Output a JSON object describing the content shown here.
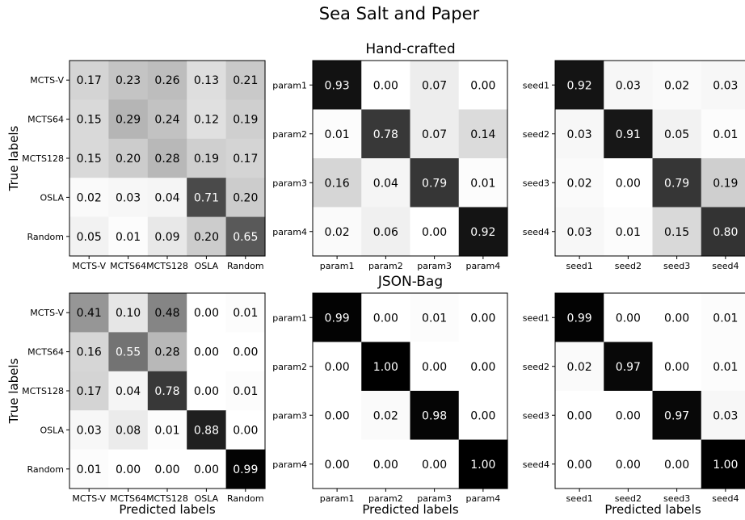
{
  "figure": {
    "title": "Sea Salt and Paper",
    "row_titles": [
      "Hand-crafted",
      "JSON-Bag"
    ],
    "ylabel": "True labels",
    "xlabel": "Predicted labels"
  },
  "chart_data": [
    {
      "type": "heatmap",
      "row": "Hand-crafted",
      "labels": [
        "MCTS-V",
        "MCTS64",
        "MCTS128",
        "OSLA",
        "Random"
      ],
      "values": [
        [
          0.17,
          0.23,
          0.26,
          0.13,
          0.21
        ],
        [
          0.15,
          0.29,
          0.24,
          0.12,
          0.19
        ],
        [
          0.15,
          0.2,
          0.28,
          0.19,
          0.17
        ],
        [
          0.02,
          0.03,
          0.04,
          0.71,
          0.2
        ],
        [
          0.05,
          0.01,
          0.09,
          0.2,
          0.65
        ]
      ]
    },
    {
      "type": "heatmap",
      "row": "Hand-crafted",
      "labels": [
        "param1",
        "param2",
        "param3",
        "param4"
      ],
      "values": [
        [
          0.93,
          0.0,
          0.07,
          0.0
        ],
        [
          0.01,
          0.78,
          0.07,
          0.14
        ],
        [
          0.16,
          0.04,
          0.79,
          0.01
        ],
        [
          0.02,
          0.06,
          0.0,
          0.92
        ]
      ]
    },
    {
      "type": "heatmap",
      "row": "Hand-crafted",
      "labels": [
        "seed1",
        "seed2",
        "seed3",
        "seed4"
      ],
      "values": [
        [
          0.92,
          0.03,
          0.02,
          0.03
        ],
        [
          0.03,
          0.91,
          0.05,
          0.01
        ],
        [
          0.02,
          0.0,
          0.79,
          0.19
        ],
        [
          0.03,
          0.01,
          0.15,
          0.8
        ]
      ]
    },
    {
      "type": "heatmap",
      "row": "JSON-Bag",
      "labels": [
        "MCTS-V",
        "MCTS64",
        "MCTS128",
        "OSLA",
        "Random"
      ],
      "values": [
        [
          0.41,
          0.1,
          0.48,
          0.0,
          0.01
        ],
        [
          0.16,
          0.55,
          0.28,
          0.0,
          0.0
        ],
        [
          0.17,
          0.04,
          0.78,
          0.0,
          0.01
        ],
        [
          0.03,
          0.08,
          0.01,
          0.88,
          0.0
        ],
        [
          0.01,
          0.0,
          0.0,
          0.0,
          0.99
        ]
      ]
    },
    {
      "type": "heatmap",
      "row": "JSON-Bag",
      "labels": [
        "param1",
        "param2",
        "param3",
        "param4"
      ],
      "values": [
        [
          0.99,
          0.0,
          0.01,
          0.0
        ],
        [
          0.0,
          1.0,
          0.0,
          0.0
        ],
        [
          0.0,
          0.02,
          0.98,
          0.0
        ],
        [
          0.0,
          0.0,
          0.0,
          1.0
        ]
      ]
    },
    {
      "type": "heatmap",
      "row": "JSON-Bag",
      "labels": [
        "seed1",
        "seed2",
        "seed3",
        "seed4"
      ],
      "values": [
        [
          0.99,
          0.0,
          0.0,
          0.01
        ],
        [
          0.02,
          0.97,
          0.0,
          0.01
        ],
        [
          0.0,
          0.0,
          0.97,
          0.03
        ],
        [
          0.0,
          0.0,
          0.0,
          1.0
        ]
      ]
    }
  ]
}
